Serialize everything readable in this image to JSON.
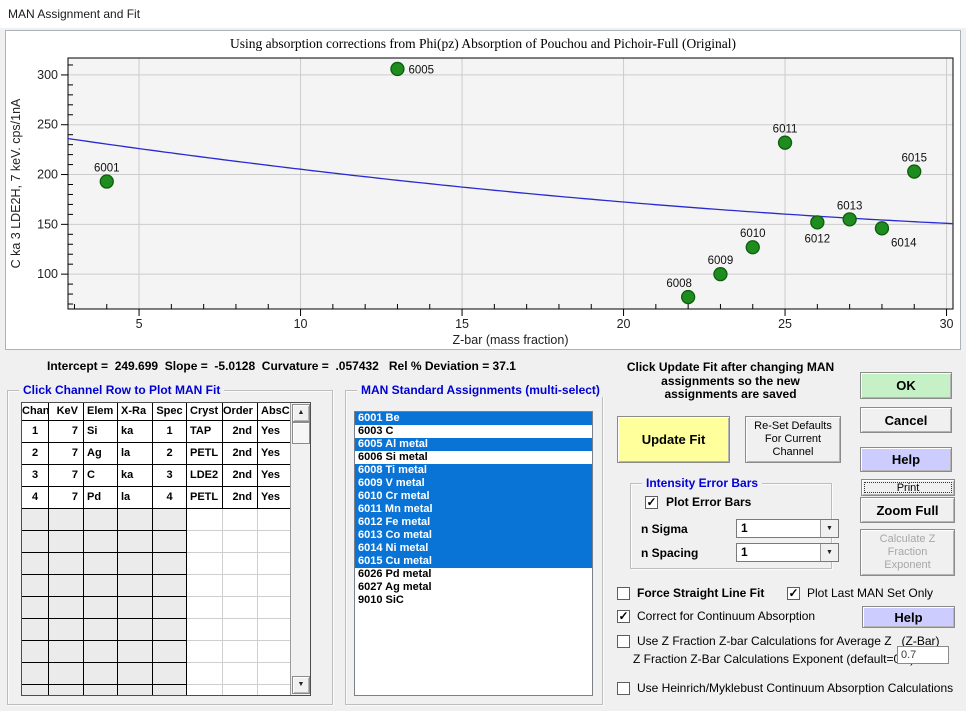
{
  "window": {
    "title": "MAN Assignment and Fit"
  },
  "chart_data": {
    "type": "scatter",
    "title": "Using absorption corrections from Phi(pz) Absorption of Pouchou and Pichoir-Full (Original)",
    "xlabel": "Z-bar (mass fraction)",
    "ylabel": "C ka  3 LDE2H, 7 keV. cps/1nA",
    "xlim": [
      2.8,
      30.2
    ],
    "ylim": [
      65,
      317
    ],
    "xticks": [
      5,
      10,
      15,
      20,
      25,
      30
    ],
    "yticks": [
      100,
      150,
      200,
      250,
      300
    ],
    "x_minor_step": 1,
    "y_minor_step": 10,
    "grid": true,
    "legend": "none",
    "points": [
      {
        "label": "6001",
        "x": 4,
        "y": 193,
        "label_pos": "above"
      },
      {
        "label": "6005",
        "x": 13,
        "y": 306,
        "label_pos": "right"
      },
      {
        "label": "6008",
        "x": 22,
        "y": 77,
        "label_pos": "above-left"
      },
      {
        "label": "6009",
        "x": 23,
        "y": 100,
        "label_pos": "above"
      },
      {
        "label": "6010",
        "x": 24,
        "y": 127,
        "label_pos": "above"
      },
      {
        "label": "6011",
        "x": 25,
        "y": 232,
        "label_pos": "above"
      },
      {
        "label": "6012",
        "x": 26,
        "y": 152,
        "label_pos": "below"
      },
      {
        "label": "6013",
        "x": 27,
        "y": 155,
        "label_pos": "above"
      },
      {
        "label": "6014",
        "x": 28,
        "y": 146,
        "label_pos": "below-right"
      },
      {
        "label": "6015",
        "x": 29,
        "y": 203,
        "label_pos": "above"
      }
    ],
    "fit_curve": {
      "intercept": 249.699,
      "slope": -5.0128,
      "curvature": 0.057432
    },
    "colors": {
      "marker": "#1e8c1e",
      "marker_edge": "#0d5e0d",
      "line": "#2a2ad0",
      "grid": "#cccccc",
      "plot_bg": "#f4f4f4",
      "frame": "#000000"
    }
  },
  "stats_line": "Intercept =  249.699  Slope =  -5.0128  Curvature =  .057432   Rel % Deviation = 37.1",
  "channel_table": {
    "group_label": "Click Channel Row to Plot MAN Fit",
    "headers": [
      "Chan",
      "KeV",
      "Elem",
      "X-Ra",
      "Spec",
      "Cryst",
      "Order",
      "AbsC"
    ],
    "rows": [
      [
        "1",
        "7",
        "Si",
        "ka",
        "1",
        "TAP",
        "2nd",
        "Yes"
      ],
      [
        "2",
        "7",
        "Ag",
        "la",
        "2",
        "PETL",
        "2nd",
        "Yes"
      ],
      [
        "3",
        "7",
        "C",
        "ka",
        "3",
        "LDE2",
        "2nd",
        "Yes"
      ],
      [
        "4",
        "7",
        "Pd",
        "la",
        "4",
        "PETL",
        "2nd",
        "Yes"
      ]
    ],
    "empty_rows": 9
  },
  "man_list": {
    "group_label": "MAN Standard Assignments (multi-select)",
    "items": [
      {
        "label": "6001 Be",
        "selected": true
      },
      {
        "label": "6003 C",
        "selected": false
      },
      {
        "label": "6005 Al metal",
        "selected": true
      },
      {
        "label": "6006 Si metal",
        "selected": false
      },
      {
        "label": "6008 Ti metal",
        "selected": true
      },
      {
        "label": "6009 V metal",
        "selected": true
      },
      {
        "label": "6010 Cr metal",
        "selected": true
      },
      {
        "label": "6011 Mn metal",
        "selected": true
      },
      {
        "label": "6012 Fe metal",
        "selected": true
      },
      {
        "label": "6013 Co metal",
        "selected": true
      },
      {
        "label": "6014 Ni metal",
        "selected": true
      },
      {
        "label": "6015 Cu metal",
        "selected": true
      },
      {
        "label": "6026 Pd metal",
        "selected": false
      },
      {
        "label": "6027 Ag metal",
        "selected": false
      },
      {
        "label": "9010 SiC",
        "selected": false
      }
    ]
  },
  "actions": {
    "note_lines": [
      "Click Update Fit after changing MAN",
      "assignments so the new",
      "assignments are saved"
    ],
    "update_fit": "Update Fit",
    "reset_defaults_lines": [
      "Re-Set Defaults",
      "For Current",
      "Channel"
    ],
    "ok": "OK",
    "cancel": "Cancel",
    "help": "Help",
    "print": "Print",
    "zoom_full": "Zoom Full",
    "calc_z_lines": [
      "Calculate Z",
      "Fraction",
      "Exponent"
    ],
    "help2": "Help"
  },
  "error_bars": {
    "group_label": "Intensity Error Bars",
    "plot_error_bars": {
      "label": "Plot Error Bars",
      "checked": true
    },
    "n_sigma_label": "n Sigma",
    "n_sigma_value": "1",
    "n_spacing_label": "n Spacing",
    "n_spacing_value": "1"
  },
  "options": {
    "force_straight": {
      "label": "Force Straight Line Fit",
      "checked": false
    },
    "plot_last": {
      "label": "Plot Last MAN Set Only",
      "checked": true
    },
    "continuum": {
      "label": "Correct for Continuum Absorption",
      "checked": true
    },
    "zfraction": {
      "label": "Use Z Fraction Z-bar Calculations for Average Z   (Z-Bar)",
      "checked": false
    },
    "exponent_label": "Z Fraction Z-Bar Calculations Exponent (default=0.7)",
    "exponent_value": "0.7",
    "heinrich": {
      "label": "Use Heinrich/Myklebust Continuum Absorption Calculations",
      "checked": false
    }
  }
}
